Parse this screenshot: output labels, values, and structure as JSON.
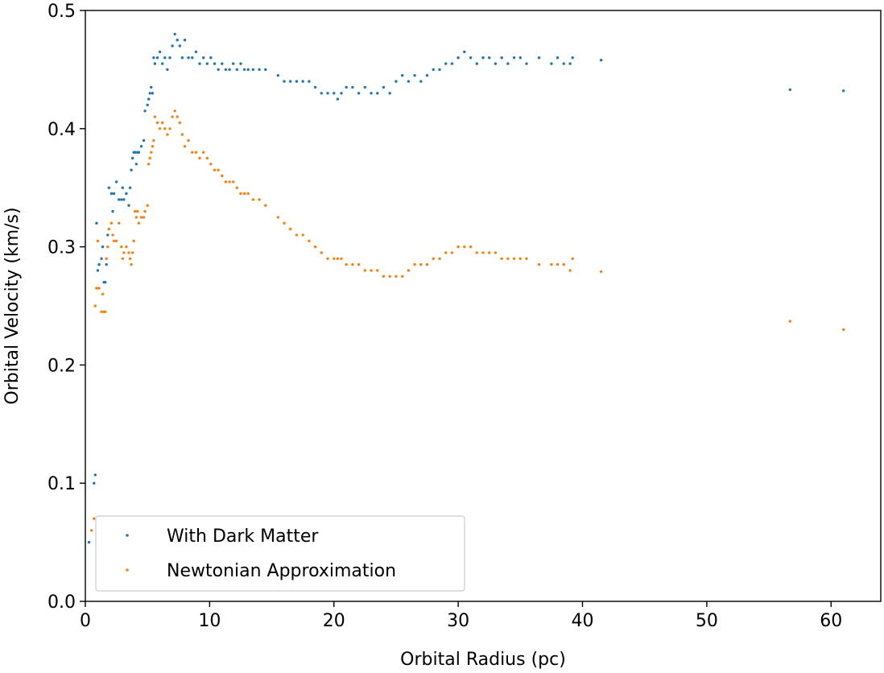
{
  "chart_data": {
    "type": "scatter",
    "title": "",
    "xlabel": "Orbital Radius (pc)",
    "ylabel": "Orbital Velocity (km/s)",
    "xlim": [
      0,
      64
    ],
    "ylim": [
      0,
      0.5
    ],
    "xticks": [
      0,
      10,
      20,
      30,
      40,
      50,
      60
    ],
    "yticks": [
      0.0,
      0.1,
      0.2,
      0.3,
      0.4,
      0.5
    ],
    "xtick_labels": [
      "0",
      "10",
      "20",
      "30",
      "40",
      "50",
      "60"
    ],
    "ytick_labels": [
      "0.0",
      "0.1",
      "0.2",
      "0.3",
      "0.4",
      "0.5"
    ],
    "grid": false,
    "legend_position": "lower-left",
    "series": [
      {
        "name": "With Dark Matter",
        "color": "#1f77b4",
        "x": [
          0.3,
          0.7,
          0.8,
          0.9,
          1.0,
          1.1,
          1.3,
          1.4,
          1.5,
          1.6,
          1.7,
          1.8,
          1.9,
          2.1,
          2.2,
          2.3,
          2.5,
          2.7,
          2.9,
          3.0,
          3.1,
          3.3,
          3.5,
          3.6,
          3.7,
          3.8,
          3.9,
          4.0,
          4.1,
          4.2,
          4.3,
          4.5,
          4.7,
          4.8,
          5.0,
          5.1,
          5.2,
          5.3,
          5.4,
          5.5,
          5.6,
          5.8,
          6.0,
          6.2,
          6.4,
          6.6,
          6.8,
          7.0,
          7.2,
          7.4,
          7.6,
          7.8,
          8.0,
          8.3,
          8.6,
          8.9,
          9.2,
          9.5,
          9.8,
          10.1,
          10.4,
          10.7,
          11.0,
          11.3,
          11.6,
          11.9,
          12.2,
          12.5,
          12.8,
          13.1,
          13.5,
          14.0,
          14.5,
          15.5,
          16.0,
          16.5,
          17.0,
          17.5,
          18.0,
          18.5,
          19.0,
          19.5,
          20.0,
          20.3,
          20.6,
          21.0,
          21.5,
          22.0,
          22.5,
          23.0,
          23.5,
          24.0,
          24.5,
          25.0,
          25.5,
          26.0,
          26.5,
          27.0,
          27.5,
          28.0,
          28.5,
          29.0,
          29.5,
          30.0,
          30.5,
          31.0,
          31.5,
          32.0,
          32.5,
          33.0,
          33.5,
          34.0,
          34.5,
          35.0,
          35.5,
          36.5,
          37.5,
          38.0,
          38.5,
          39.0,
          39.2,
          41.5,
          56.7,
          61.0
        ],
        "y": [
          0.05,
          0.1,
          0.107,
          0.32,
          0.28,
          0.285,
          0.29,
          0.3,
          0.27,
          0.27,
          0.285,
          0.31,
          0.35,
          0.345,
          0.33,
          0.345,
          0.355,
          0.34,
          0.34,
          0.35,
          0.34,
          0.345,
          0.335,
          0.35,
          0.365,
          0.375,
          0.38,
          0.38,
          0.37,
          0.38,
          0.38,
          0.385,
          0.39,
          0.415,
          0.42,
          0.425,
          0.43,
          0.435,
          0.43,
          0.46,
          0.455,
          0.46,
          0.465,
          0.455,
          0.46,
          0.45,
          0.46,
          0.47,
          0.48,
          0.475,
          0.47,
          0.46,
          0.475,
          0.46,
          0.46,
          0.465,
          0.455,
          0.46,
          0.455,
          0.46,
          0.455,
          0.45,
          0.455,
          0.45,
          0.45,
          0.455,
          0.45,
          0.455,
          0.45,
          0.45,
          0.45,
          0.45,
          0.45,
          0.445,
          0.44,
          0.44,
          0.44,
          0.44,
          0.44,
          0.435,
          0.43,
          0.43,
          0.43,
          0.425,
          0.43,
          0.435,
          0.435,
          0.43,
          0.435,
          0.43,
          0.43,
          0.435,
          0.43,
          0.44,
          0.445,
          0.44,
          0.445,
          0.44,
          0.445,
          0.45,
          0.45,
          0.455,
          0.455,
          0.46,
          0.465,
          0.46,
          0.455,
          0.46,
          0.46,
          0.455,
          0.46,
          0.455,
          0.46,
          0.46,
          0.455,
          0.46,
          0.455,
          0.46,
          0.455,
          0.455,
          0.46,
          0.458,
          0.433,
          0.432
        ]
      },
      {
        "name": "Newtonian Approximation",
        "color": "#ff7f0e",
        "x": [
          0.5,
          0.7,
          0.8,
          0.9,
          1.0,
          1.1,
          1.3,
          1.4,
          1.5,
          1.6,
          1.7,
          1.8,
          1.9,
          2.1,
          2.2,
          2.3,
          2.5,
          2.7,
          2.9,
          3.0,
          3.1,
          3.3,
          3.5,
          3.6,
          3.7,
          3.8,
          3.9,
          4.0,
          4.1,
          4.2,
          4.3,
          4.5,
          4.7,
          4.8,
          5.0,
          5.1,
          5.2,
          5.3,
          5.4,
          5.5,
          5.6,
          5.8,
          6.0,
          6.2,
          6.4,
          6.6,
          6.8,
          7.0,
          7.2,
          7.4,
          7.6,
          7.8,
          8.0,
          8.3,
          8.6,
          8.9,
          9.2,
          9.5,
          9.8,
          10.1,
          10.4,
          10.7,
          11.0,
          11.3,
          11.6,
          11.9,
          12.2,
          12.5,
          12.8,
          13.1,
          13.5,
          14.0,
          14.5,
          15.5,
          16.0,
          16.5,
          17.0,
          17.5,
          18.0,
          18.5,
          19.0,
          19.5,
          20.0,
          20.3,
          20.6,
          21.0,
          21.5,
          22.0,
          22.5,
          23.0,
          23.5,
          24.0,
          24.5,
          25.0,
          25.5,
          26.0,
          26.5,
          27.0,
          27.5,
          28.0,
          28.5,
          29.0,
          29.5,
          30.0,
          30.5,
          31.0,
          31.5,
          32.0,
          32.5,
          33.0,
          33.5,
          34.0,
          34.5,
          35.0,
          35.5,
          36.5,
          37.5,
          38.0,
          38.5,
          39.0,
          39.2,
          41.5,
          56.7,
          61.0
        ],
        "y": [
          0.06,
          0.07,
          0.25,
          0.265,
          0.305,
          0.265,
          0.245,
          0.26,
          0.245,
          0.245,
          0.29,
          0.3,
          0.315,
          0.32,
          0.31,
          0.305,
          0.305,
          0.32,
          0.3,
          0.29,
          0.295,
          0.3,
          0.295,
          0.29,
          0.285,
          0.295,
          0.305,
          0.33,
          0.325,
          0.33,
          0.32,
          0.325,
          0.325,
          0.33,
          0.335,
          0.37,
          0.375,
          0.38,
          0.385,
          0.39,
          0.41,
          0.405,
          0.4,
          0.405,
          0.4,
          0.395,
          0.4,
          0.41,
          0.415,
          0.41,
          0.405,
          0.395,
          0.385,
          0.39,
          0.38,
          0.38,
          0.375,
          0.38,
          0.375,
          0.37,
          0.365,
          0.365,
          0.36,
          0.355,
          0.355,
          0.355,
          0.35,
          0.345,
          0.345,
          0.345,
          0.34,
          0.34,
          0.335,
          0.325,
          0.32,
          0.315,
          0.31,
          0.31,
          0.305,
          0.3,
          0.295,
          0.29,
          0.29,
          0.29,
          0.29,
          0.285,
          0.285,
          0.285,
          0.28,
          0.28,
          0.28,
          0.275,
          0.275,
          0.275,
          0.275,
          0.28,
          0.285,
          0.285,
          0.285,
          0.29,
          0.29,
          0.295,
          0.295,
          0.3,
          0.3,
          0.3,
          0.295,
          0.295,
          0.295,
          0.295,
          0.29,
          0.29,
          0.29,
          0.29,
          0.29,
          0.285,
          0.285,
          0.285,
          0.285,
          0.28,
          0.29,
          0.279,
          0.237,
          0.23
        ]
      }
    ]
  }
}
